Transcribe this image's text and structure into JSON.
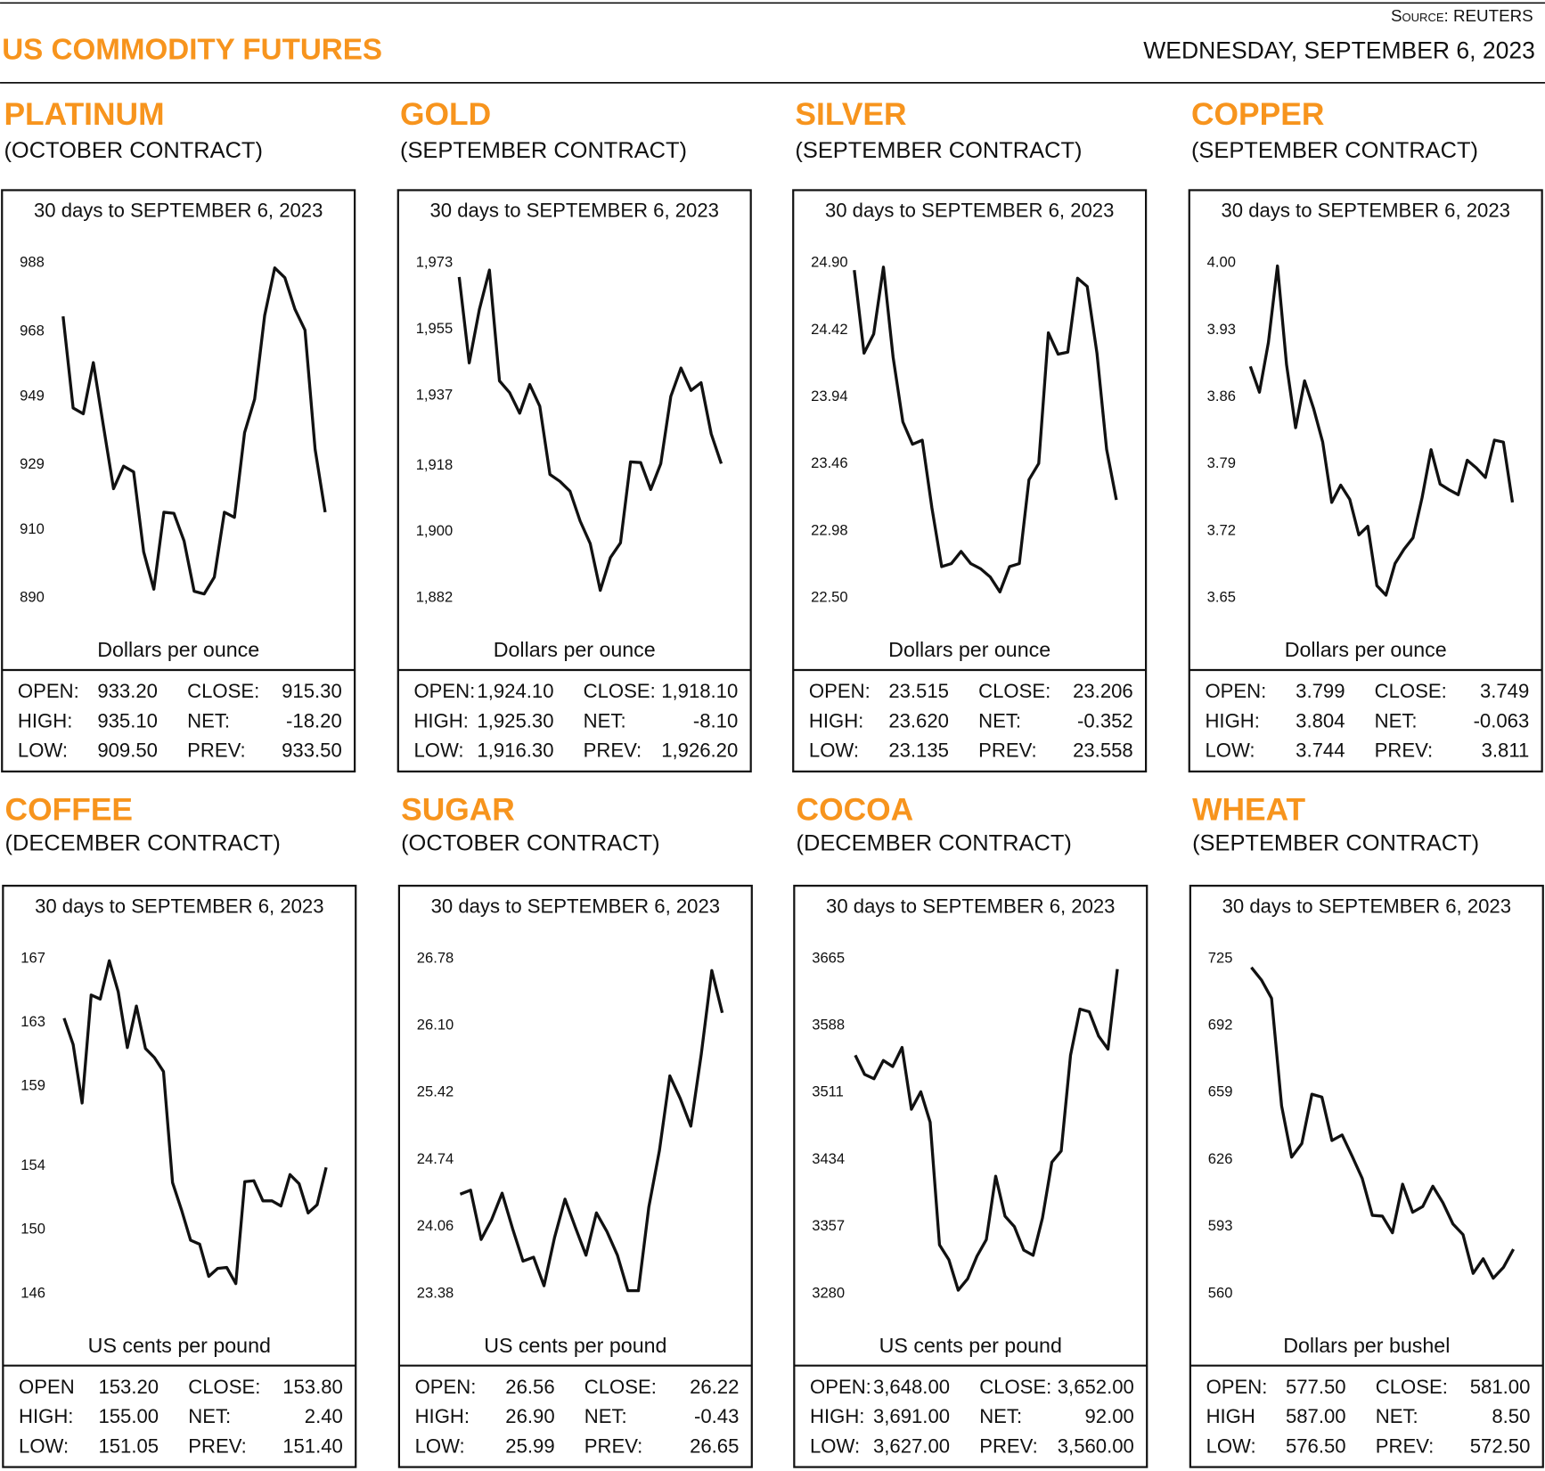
{
  "header": {
    "title": "US COMMODITY FUTURES",
    "source": "Source: REUTERS",
    "date": "WEDNESDAY, SEPTEMBER 6, 2023"
  },
  "chart_data": [
    {
      "type": "line",
      "title": "PLATINUM",
      "subtitle": "(OCTOBER CONTRACT)",
      "period": "30 days to SEPTEMBER 6, 2023",
      "ylabel": "Dollars per ounce",
      "color": "#111111",
      "ylim": [
        890,
        988
      ],
      "yticks": [
        890,
        910,
        929,
        949,
        968,
        988
      ],
      "values": [
        972.4,
        945.6,
        943.9,
        958.9,
        940.4,
        922.0,
        928.6,
        926.9,
        903.5,
        892.6,
        915.1,
        914.8,
        906.7,
        892.0,
        891.2,
        896.1,
        915.1,
        913.6,
        938.4,
        948.2,
        972.7,
        986.6,
        983.7,
        974.5,
        968.4,
        933.5,
        915.1
      ],
      "stats": [
        [
          "OPEN:",
          "933.20",
          "CLOSE:",
          "915.30"
        ],
        [
          "HIGH:",
          "935.10",
          "NET:",
          "-18.20"
        ],
        [
          "LOW:",
          "909.50",
          "PREV:",
          "933.50"
        ]
      ]
    },
    {
      "type": "line",
      "title": "GOLD",
      "subtitle": "(SEPTEMBER CONTRACT)",
      "period": "30 days to SEPTEMBER 6, 2023",
      "ylabel": "Dollars per ounce",
      "color": "#111111",
      "ylim": [
        1882,
        1973
      ],
      "yticks": [
        {
          "value": 1882,
          "label": "1,882"
        },
        {
          "value": 1900,
          "label": "1,900"
        },
        {
          "value": 1918,
          "label": "1,918"
        },
        {
          "value": 1937,
          "label": "1,937"
        },
        {
          "value": 1955,
          "label": "1,955"
        },
        {
          "value": 1973,
          "label": "1,973"
        }
      ],
      "values": [
        1969.2,
        1945.9,
        1960.4,
        1971.1,
        1941.0,
        1937.8,
        1932.2,
        1940.0,
        1934.1,
        1915.6,
        1913.7,
        1911.0,
        1902.9,
        1896.8,
        1884.1,
        1893.0,
        1897.0,
        1919.0,
        1918.8,
        1911.5,
        1918.5,
        1936.8,
        1944.5,
        1938.4,
        1940.5,
        1926.6,
        1918.5
      ],
      "stats": [
        [
          "OPEN:",
          "1,924.10",
          "CLOSE:",
          "1,918.10"
        ],
        [
          "HIGH:",
          "1,925.30",
          "NET:",
          "-8.10"
        ],
        [
          "LOW:",
          "1,916.30",
          "PREV:",
          "1,926.20"
        ]
      ]
    },
    {
      "type": "line",
      "title": "SILVER",
      "subtitle": "(SEPTEMBER CONTRACT)",
      "period": "30 days to SEPTEMBER 6, 2023",
      "ylabel": "Dollars per ounce",
      "color": "#111111",
      "ylim": [
        22.5,
        24.9
      ],
      "yticks": [
        {
          "value": 22.5,
          "label": "22.50"
        },
        22.98,
        23.46,
        23.94,
        24.42,
        {
          "value": 24.9,
          "label": "24.90"
        }
      ],
      "values": [
        24.849,
        24.255,
        24.392,
        24.871,
        24.226,
        23.762,
        23.602,
        23.631,
        23.145,
        22.725,
        22.747,
        22.834,
        22.747,
        22.71,
        22.652,
        22.544,
        22.725,
        22.747,
        23.348,
        23.464,
        24.4,
        24.247,
        24.262,
        24.791,
        24.733,
        24.255,
        23.566,
        23.203
      ],
      "stats": [
        [
          "OPEN:",
          "23.515",
          "CLOSE:",
          "23.206"
        ],
        [
          "HIGH:",
          "23.620",
          "NET:",
          "-0.352"
        ],
        [
          "LOW:",
          "23.135",
          "PREV:",
          "23.558"
        ]
      ]
    },
    {
      "type": "line",
      "title": "COPPER",
      "subtitle": "(SEPTEMBER CONTRACT)",
      "period": "30 days to SEPTEMBER 6, 2023",
      "ylabel": "Dollars per ounce",
      "color": "#111111",
      "ylim": [
        3.65,
        4
      ],
      "yticks": [
        3.65,
        3.72,
        3.79,
        3.86,
        3.93,
        {
          "value": 4,
          "label": "4.00"
        }
      ],
      "values": [
        3.892,
        3.865,
        3.917,
        3.997,
        3.894,
        3.828,
        3.877,
        3.848,
        3.813,
        3.75,
        3.768,
        3.753,
        3.716,
        3.725,
        3.663,
        3.653,
        3.686,
        3.701,
        3.713,
        3.755,
        3.805,
        3.769,
        3.763,
        3.758,
        3.794,
        3.786,
        3.776,
        3.815,
        3.813,
        3.75
      ],
      "stats": [
        [
          "OPEN:",
          "3.799",
          "CLOSE:",
          "3.749"
        ],
        [
          "HIGH:",
          "3.804",
          "NET:",
          "-0.063"
        ],
        [
          "LOW:",
          "3.744",
          "PREV:",
          "3.811"
        ]
      ]
    },
    {
      "type": "line",
      "title": "COFFEE",
      "subtitle": "(DECEMBER CONTRACT)",
      "period": "30 days to SEPTEMBER 6, 2023",
      "ylabel": "US cents per pound",
      "color": "#111111",
      "ylim": [
        146,
        167
      ],
      "yticks": [
        146,
        150,
        154,
        159,
        163,
        167
      ],
      "values": [
        163.27,
        161.62,
        157.95,
        164.72,
        164.47,
        166.87,
        164.91,
        161.43,
        164.03,
        161.37,
        160.8,
        159.92,
        152.96,
        151.25,
        149.35,
        149.1,
        147.08,
        147.58,
        147.64,
        146.63,
        153.02,
        153.08,
        151.82,
        151.82,
        151.5,
        153.46,
        152.89,
        151.06,
        151.57,
        153.91
      ],
      "stats": [
        [
          "OPEN",
          "153.20",
          "CLOSE:",
          "153.80"
        ],
        [
          "HIGH:",
          "155.00",
          "NET:",
          "2.40"
        ],
        [
          "LOW:",
          "151.05",
          "PREV:",
          "151.40"
        ]
      ]
    },
    {
      "type": "line",
      "title": "SUGAR",
      "subtitle": "(OCTOBER CONTRACT)",
      "period": "30 days to SEPTEMBER 6, 2023",
      "ylabel": "US cents per pound",
      "color": "#111111",
      "ylim": [
        23.38,
        26.78
      ],
      "yticks": [
        23.38,
        24.06,
        24.74,
        25.42,
        {
          "value": 26.1,
          "label": "26.10"
        },
        26.78
      ],
      "values": [
        24.39,
        24.43,
        23.93,
        24.13,
        24.4,
        24.04,
        23.71,
        23.75,
        23.46,
        23.95,
        24.34,
        24.05,
        23.77,
        24.2,
        24.01,
        23.77,
        23.41,
        23.41,
        24.26,
        24.83,
        25.59,
        25.36,
        25.08,
        25.81,
        26.66,
        26.23
      ],
      "stats": [
        [
          "OPEN:",
          "26.56",
          "CLOSE:",
          "26.22"
        ],
        [
          "HIGH:",
          "26.90",
          "NET:",
          "-0.43"
        ],
        [
          "LOW:",
          "25.99",
          "PREV:",
          "26.65"
        ]
      ]
    },
    {
      "type": "line",
      "title": "COCOA",
      "subtitle": "(DECEMBER CONTRACT)",
      "period": "30 days to SEPTEMBER 6, 2023",
      "ylabel": "US cents per pound",
      "color": "#111111",
      "ylim": [
        3280,
        3665
      ],
      "yticks": [
        3280,
        3357,
        3434,
        3511,
        3588,
        3665
      ],
      "values": [
        3554,
        3532,
        3527,
        3548,
        3541,
        3563,
        3492,
        3512,
        3477,
        3336,
        3319,
        3284,
        3297,
        3323,
        3342,
        3415,
        3369,
        3357,
        3330,
        3324,
        3367,
        3431,
        3444,
        3554,
        3607,
        3604,
        3576,
        3561,
        3653
      ],
      "stats": [
        [
          "OPEN:",
          "3,648.00",
          "CLOSE:",
          "3,652.00"
        ],
        [
          "HIGH:",
          "3,691.00",
          "NET:",
          "92.00"
        ],
        [
          "LOW:",
          "3,627.00",
          "PREV:",
          "3,560.00"
        ]
      ]
    },
    {
      "type": "line",
      "title": "WHEAT",
      "subtitle": "(SEPTEMBER CONTRACT)",
      "period": "30 days to SEPTEMBER 6, 2023",
      "ylabel": "Dollars per bushel",
      "color": "#111111",
      "ylim": [
        560,
        725
      ],
      "yticks": [
        560,
        593,
        626,
        659,
        692,
        725
      ],
      "values": [
        720.7,
        714.5,
        705.5,
        652.5,
        627.2,
        633.9,
        658.2,
        656.8,
        635.4,
        638.2,
        627.7,
        616.8,
        598.6,
        598.2,
        590.0,
        613.9,
        600.1,
        602.9,
        612.9,
        604.8,
        594.3,
        589.1,
        570.0,
        577.2,
        567.6,
        572.9,
        581.9
      ],
      "stats": [
        [
          "OPEN:",
          "577.50",
          "CLOSE:",
          "581.00"
        ],
        [
          "HIGH",
          "587.00",
          "NET:",
          "8.50"
        ],
        [
          "LOW:",
          "576.50",
          "PREV:",
          "572.50"
        ]
      ]
    }
  ]
}
